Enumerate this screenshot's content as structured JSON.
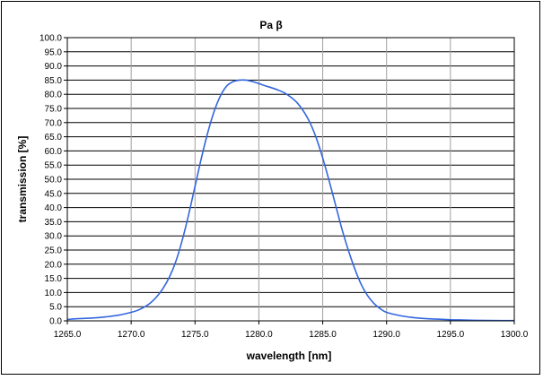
{
  "chart_data": {
    "type": "line",
    "title": "Pa β",
    "xlabel": "wavelength [nm]",
    "ylabel": "transmission [%]",
    "xlim": [
      1265.0,
      1300.0
    ],
    "ylim": [
      0.0,
      100.0
    ],
    "x_ticks": [
      "1265.0",
      "1270.0",
      "1275.0",
      "1280.0",
      "1285.0",
      "1290.0",
      "1295.0",
      "1300.0"
    ],
    "y_ticks": [
      "0.0",
      "5.0",
      "10.0",
      "15.0",
      "20.0",
      "25.0",
      "30.0",
      "35.0",
      "40.0",
      "45.0",
      "50.0",
      "55.0",
      "60.0",
      "65.0",
      "70.0",
      "75.0",
      "80.0",
      "85.0",
      "90.0",
      "95.0",
      "100.0"
    ],
    "grid": true,
    "legend": "none",
    "line_color": "#3366dd",
    "series": [
      {
        "x": [
          1265.0,
          1266.0,
          1267.0,
          1268.0,
          1269.0,
          1270.0,
          1270.5,
          1271.0,
          1271.5,
          1272.0,
          1272.5,
          1273.0,
          1273.5,
          1274.0,
          1274.5,
          1275.0,
          1275.5,
          1276.0,
          1276.5,
          1277.0,
          1277.5,
          1278.0,
          1278.5,
          1279.0,
          1279.5,
          1280.0,
          1280.5,
          1281.0,
          1281.5,
          1282.0,
          1282.5,
          1283.0,
          1283.5,
          1284.0,
          1284.5,
          1285.0,
          1285.5,
          1286.0,
          1286.5,
          1287.0,
          1287.5,
          1288.0,
          1288.5,
          1289.0,
          1289.5,
          1290.0,
          1291.0,
          1292.0,
          1293.0,
          1294.0,
          1295.0,
          1296.0,
          1297.0,
          1298.0,
          1299.0,
          1300.0
        ],
        "y": [
          0.5,
          0.8,
          1.0,
          1.4,
          2.0,
          3.0,
          3.7,
          4.8,
          6.3,
          8.5,
          11.5,
          15.5,
          21.0,
          28.5,
          37.5,
          47.5,
          57.5,
          66.5,
          74.0,
          79.5,
          83.0,
          84.5,
          85.0,
          85.0,
          84.5,
          83.8,
          83.0,
          82.3,
          81.5,
          80.5,
          79.0,
          77.0,
          74.0,
          70.0,
          64.5,
          57.5,
          49.5,
          41.0,
          32.5,
          25.0,
          18.5,
          13.0,
          9.0,
          6.2,
          4.3,
          3.0,
          1.9,
          1.2,
          0.8,
          0.6,
          0.4,
          0.3,
          0.2,
          0.15,
          0.1,
          0.1
        ]
      }
    ]
  }
}
